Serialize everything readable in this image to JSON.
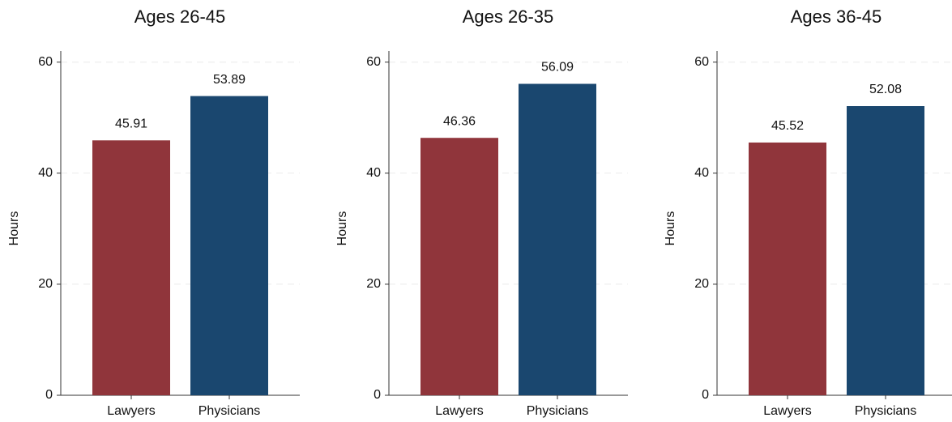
{
  "chart_data": [
    {
      "type": "bar",
      "title": "Ages 26-45",
      "ylabel": "Hours",
      "categories": [
        "Lawyers",
        "Physicians"
      ],
      "values": [
        45.91,
        53.89
      ],
      "colors": [
        "#90353b",
        "#1a476f"
      ],
      "ylim": [
        0,
        62
      ],
      "yticks": [
        0,
        20,
        40,
        60
      ],
      "grid": true
    },
    {
      "type": "bar",
      "title": "Ages 26-35",
      "ylabel": "Hours",
      "categories": [
        "Lawyers",
        "Physicians"
      ],
      "values": [
        46.36,
        56.09
      ],
      "colors": [
        "#90353b",
        "#1a476f"
      ],
      "ylim": [
        0,
        62
      ],
      "yticks": [
        0,
        20,
        40,
        60
      ],
      "grid": true
    },
    {
      "type": "bar",
      "title": "Ages 36-45",
      "ylabel": "Hours",
      "categories": [
        "Lawyers",
        "Physicians"
      ],
      "values": [
        45.52,
        52.08
      ],
      "colors": [
        "#90353b",
        "#1a476f"
      ],
      "ylim": [
        0,
        62
      ],
      "yticks": [
        0,
        20,
        40,
        60
      ],
      "grid": true
    }
  ]
}
